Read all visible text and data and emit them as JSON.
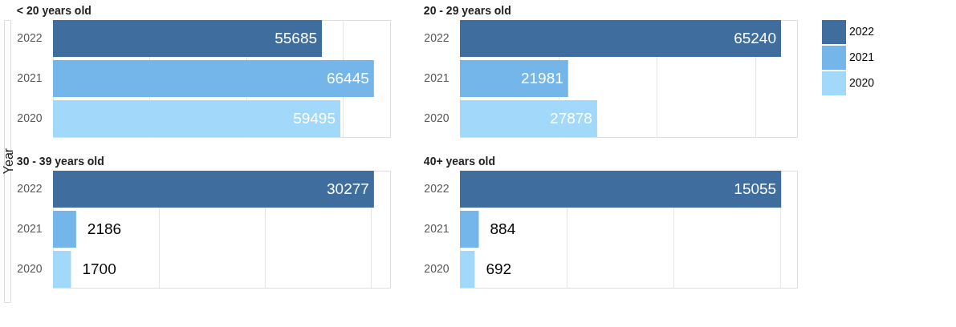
{
  "chart_data": [
    {
      "type": "bar",
      "orientation": "horizontal",
      "title": "< 20 years old",
      "ylabel": "Year",
      "categories": [
        "2022",
        "2021",
        "2020"
      ],
      "series": [
        {
          "name": "2022",
          "color": "#3f6e9e",
          "values": [
            55685,
            null,
            null
          ]
        },
        {
          "name": "2021",
          "color": "#74b5ea",
          "values": [
            null,
            66445,
            null
          ]
        },
        {
          "name": "2020",
          "color": "#a2d8fa",
          "values": [
            null,
            null,
            59495
          ]
        }
      ],
      "xlim": [
        0,
        69800
      ],
      "xticks": [
        {
          "value": 0,
          "label": null
        },
        {
          "value": 20000,
          "label": null
        },
        {
          "value": 40000,
          "label": null
        },
        {
          "value": 60000,
          "label": null
        }
      ],
      "grid": "x",
      "tick_labels": "y",
      "data_labels": true,
      "legend": "right"
    },
    {
      "type": "bar",
      "orientation": "horizontal",
      "title": "20 - 29 years old",
      "categories": [
        "2022",
        "2021",
        "2020"
      ],
      "series": [
        {
          "name": "2022",
          "color": "#3f6e9e",
          "values": [
            65240,
            null,
            null
          ]
        },
        {
          "name": "2021",
          "color": "#74b5ea",
          "values": [
            null,
            21981,
            null
          ]
        },
        {
          "name": "2020",
          "color": "#a2d8fa",
          "values": [
            null,
            null,
            27878
          ]
        }
      ],
      "xlim": [
        0,
        68500
      ],
      "xticks": [
        {
          "value": 0,
          "label": null
        },
        {
          "value": 20000,
          "label": null
        },
        {
          "value": 40000,
          "label": null
        },
        {
          "value": 60000,
          "label": null
        }
      ],
      "grid": "x",
      "tick_labels": "y",
      "data_labels": true,
      "legend": "right"
    },
    {
      "type": "bar",
      "orientation": "horizontal",
      "title": "30 - 39 years old",
      "categories": [
        "2022",
        "2021",
        "2020"
      ],
      "series": [
        {
          "name": "2022",
          "color": "#3f6e9e",
          "values": [
            30277,
            null,
            null
          ]
        },
        {
          "name": "2021",
          "color": "#74b5ea",
          "values": [
            null,
            2186,
            null
          ]
        },
        {
          "name": "2020",
          "color": "#a2d8fa",
          "values": [
            null,
            null,
            1700
          ]
        }
      ],
      "xlim": [
        0,
        31800
      ],
      "xticks": [
        {
          "value": 0,
          "label": null
        },
        {
          "value": 10000,
          "label": null
        },
        {
          "value": 20000,
          "label": null
        },
        {
          "value": 30000,
          "label": null
        }
      ],
      "grid": "x",
      "tick_labels": "y",
      "data_labels": true,
      "legend": "right"
    },
    {
      "type": "bar",
      "orientation": "horizontal",
      "title": "40+ years old",
      "categories": [
        "2022",
        "2021",
        "2020"
      ],
      "series": [
        {
          "name": "2022",
          "color": "#3f6e9e",
          "values": [
            15055,
            null,
            null
          ]
        },
        {
          "name": "2021",
          "color": "#74b5ea",
          "values": [
            null,
            884,
            null
          ]
        },
        {
          "name": "2020",
          "color": "#a2d8fa",
          "values": [
            null,
            null,
            692
          ]
        }
      ],
      "xlim": [
        0,
        15800
      ],
      "xticks": [
        {
          "value": 0,
          "label": null
        },
        {
          "value": 5000,
          "label": null
        },
        {
          "value": 10000,
          "label": null
        },
        {
          "value": 15000,
          "label": null
        }
      ],
      "grid": "x",
      "tick_labels": "y",
      "data_labels": true,
      "legend": "right"
    }
  ]
}
